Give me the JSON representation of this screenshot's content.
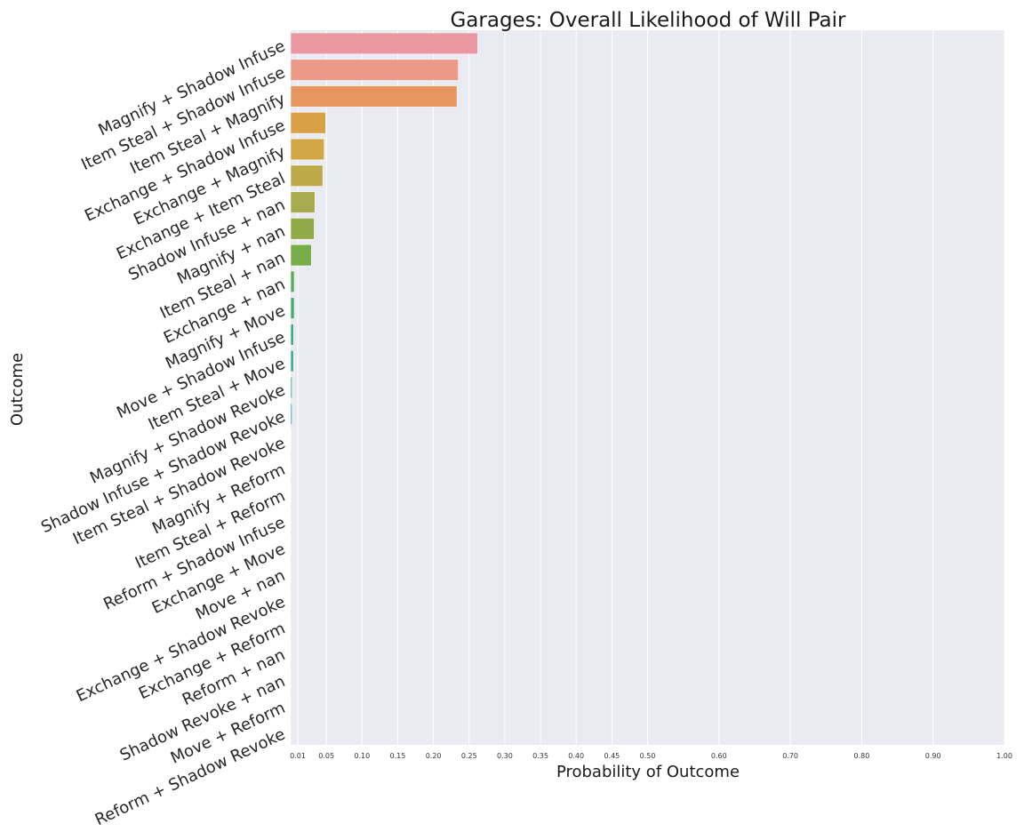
{
  "chart_data": {
    "type": "bar",
    "orientation": "horizontal",
    "title": "Garages: Overall Likelihood of Will Pair",
    "xlabel": "Probability of Outcome",
    "ylabel": "Outcome",
    "xlim": [
      0.0,
      1.0
    ],
    "xticks": [
      0.01,
      0.05,
      0.1,
      0.15,
      0.2,
      0.25,
      0.3,
      0.35,
      0.4,
      0.45,
      0.5,
      0.6,
      0.7,
      0.8,
      0.9,
      1.0
    ],
    "xtick_labels": [
      "0.01",
      "0.05",
      "0.10",
      "0.15",
      "0.20",
      "0.25",
      "0.30",
      "0.35",
      "0.40",
      "0.45",
      "0.50",
      "0.60",
      "0.70",
      "0.80",
      "0.90",
      "1.00"
    ],
    "grid": "vertical",
    "background": "#eaeaf2",
    "categories": [
      "Magnify + Shadow Infuse",
      "Item Steal + Shadow Infuse",
      "Item Steal + Magnify",
      "Exchange + Shadow Infuse",
      "Exchange + Magnify",
      "Exchange + Item Steal",
      "Shadow Infuse + nan",
      "Magnify + nan",
      "Item Steal + nan",
      "Exchange + nan",
      "Magnify + Move",
      "Move + Shadow Infuse",
      "Item Steal + Move",
      "Magnify + Shadow Revoke",
      "Shadow Infuse + Shadow Revoke",
      "Item Steal + Shadow Revoke",
      "Magnify + Reform",
      "Item Steal + Reform",
      "Reform + Shadow Infuse",
      "Exchange + Move",
      "Move + nan",
      "Exchange + Shadow Revoke",
      "Exchange + Reform",
      "Reform + nan",
      "Shadow Revoke + nan",
      "Move + Reform",
      "Reform + Shadow Revoke"
    ],
    "values": [
      0.262,
      0.235,
      0.233,
      0.049,
      0.047,
      0.045,
      0.034,
      0.033,
      0.029,
      0.005,
      0.005,
      0.004,
      0.004,
      0.002,
      0.002,
      0.0005,
      0.0004,
      0.0004,
      0.0003,
      0.0003,
      0.0002,
      0.0002,
      0.0002,
      0.0001,
      0.0001,
      0.0001,
      0.0001
    ],
    "colors": [
      "#ea97a1",
      "#ea9a87",
      "#e8965f",
      "#daa045",
      "#d1a645",
      "#bea949",
      "#a6ac4d",
      "#8fab48",
      "#77ad47",
      "#55ae55",
      "#41ac6d",
      "#39ab84",
      "#3aa992",
      "#37a89f",
      "#36a9aa",
      "#38aab5",
      "#3aacc0",
      "#46adcf",
      "#61aadb",
      "#7fa2e6",
      "#9c99ec",
      "#b48ded",
      "#c782ee",
      "#d57ad8",
      "#de79c3",
      "#e47bb0",
      "#e885a2"
    ]
  }
}
